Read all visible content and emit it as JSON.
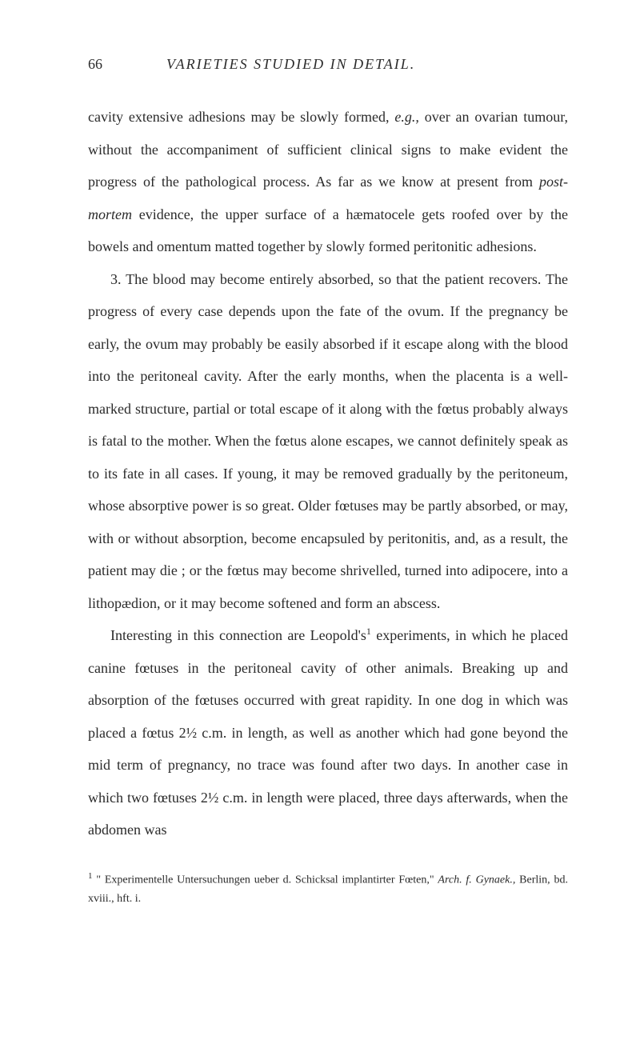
{
  "header": {
    "page_number": "66",
    "title": "VARIETIES STUDIED IN DETAIL."
  },
  "paragraphs": {
    "p1": "cavity extensive adhesions may be slowly formed, ",
    "p1_italic1": "e.g.,",
    "p1_cont": " over an ovarian tumour, without the accompaniment of sufficient clinical signs to make evident the progress of the pathological process. As far as we know at present from ",
    "p1_italic2": "post-mortem",
    "p1_cont2": " evidence, the upper surface of a hæmatocele gets roofed over by the bowels and omentum matted together by slowly formed peritonitic adhesions.",
    "p2": "3. The blood may become entirely absorbed, so that the patient recovers. The progress of every case depends upon the fate of the ovum. If the pregnancy be early, the ovum may probably be easily absorbed if it escape along with the blood into the peritoneal cavity. After the early months, when the placenta is a well-marked structure, partial or total escape of it along with the fœtus probably always is fatal to the mother. When the fœtus alone escapes, we cannot definitely speak as to its fate in all cases. If young, it may be removed gradually by the peritoneum, whose absorptive power is so great. Older fœtuses may be partly absorbed, or may, with or without absorption, become encapsuled by peritonitis, and, as a result, the patient may die ; or the fœtus may become shrivelled, turned into adipocere, into a lithopædion, or it may become softened and form an abscess.",
    "p3_start": "Interesting in this connection are Leopold's",
    "p3_sup": "1",
    "p3_cont": " experiments, in which he placed canine fœtuses in the peritoneal cavity of other animals. Breaking up and absorption of the fœtuses occurred with great rapidity. In one dog in which was placed a fœtus 2½ c.m. in length, as well as another which had gone beyond the mid term of pregnancy, no trace was found after two days. In another case in which two fœtuses 2½ c.m. in length were placed, three days afterwards, when the abdomen was"
  },
  "footnote": {
    "marker": "1",
    "text_start": " \" Experimentelle Untersuchungen ueber d. Schicksal implantirter Fœten,\" ",
    "italic": "Arch. f. Gynaek.,",
    "text_end": " Berlin, bd. xviii., hft. i."
  }
}
